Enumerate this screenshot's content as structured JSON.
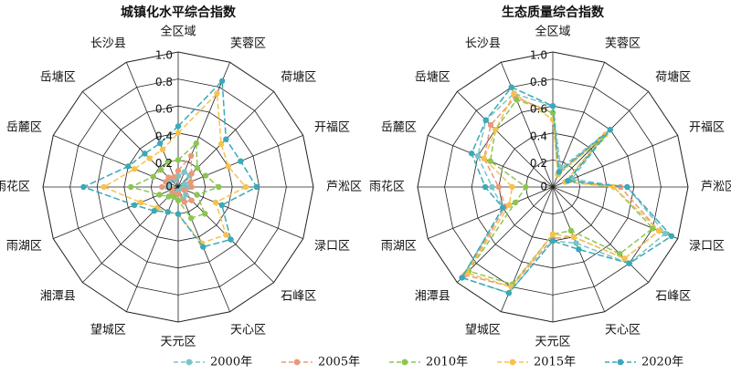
{
  "chart_data": [
    {
      "type": "radar",
      "title": "城镇化水平综合指数",
      "categories": [
        "全区域",
        "芙蓉区",
        "荷塘区",
        "开福区",
        "芦淞区",
        "渌口区",
        "石峰区",
        "天心区",
        "天元区",
        "望城区",
        "湘潭县",
        "雨湖区",
        "雨花区",
        "岳麓区",
        "岳塘区",
        "长沙县"
      ],
      "rlim": [
        0,
        1.0
      ],
      "ticks": [
        "0",
        "0.2",
        "0.4",
        "0.6",
        "0.8",
        "1.0"
      ],
      "series": [
        {
          "name": "2000年",
          "values": [
            0.08,
            0.12,
            0.12,
            0.05,
            0.08,
            0.03,
            0.08,
            0.1,
            0.03,
            0.05,
            0.06,
            0.06,
            0.08,
            0.07,
            0.09,
            0.06
          ]
        },
        {
          "name": "2005年",
          "values": [
            0.12,
            0.25,
            0.14,
            0.1,
            0.1,
            0.05,
            0.14,
            0.12,
            0.05,
            0.07,
            0.06,
            0.05,
            0.12,
            0.1,
            0.1,
            0.08
          ]
        },
        {
          "name": "2010年",
          "values": [
            0.2,
            0.35,
            0.2,
            0.22,
            0.3,
            0.15,
            0.28,
            0.25,
            0.1,
            0.08,
            0.1,
            0.15,
            0.35,
            0.2,
            0.18,
            0.2
          ]
        },
        {
          "name": "2015年",
          "values": [
            0.4,
            0.75,
            0.45,
            0.4,
            0.5,
            0.3,
            0.5,
            0.45,
            0.2,
            0.2,
            0.22,
            0.3,
            0.55,
            0.35,
            0.3,
            0.3
          ]
        },
        {
          "name": "2020年",
          "values": [
            0.45,
            0.85,
            0.5,
            0.5,
            0.58,
            0.35,
            0.55,
            0.48,
            0.2,
            0.2,
            0.25,
            0.35,
            0.7,
            0.4,
            0.35,
            0.35
          ]
        }
      ]
    },
    {
      "type": "radar",
      "title": "生态质量综合指数",
      "categories": [
        "全区域",
        "芙蓉区",
        "荷塘区",
        "开福区",
        "芦淞区",
        "渌口区",
        "石峰区",
        "天心区",
        "天元区",
        "望城区",
        "湘潭县",
        "雨湖区",
        "雨花区",
        "岳麓区",
        "岳塘区",
        "长沙县"
      ],
      "rlim": [
        0,
        1.0
      ],
      "ticks": [
        "0",
        "0.2",
        "0.4",
        "0.6",
        "0.8",
        "1.0"
      ],
      "series": [
        {
          "name": "2000年",
          "values": [
            0.6,
            0.15,
            0.6,
            0.15,
            0.55,
            0.9,
            0.8,
            0.45,
            0.4,
            0.85,
            0.95,
            0.4,
            0.45,
            0.6,
            0.7,
            0.75
          ]
        },
        {
          "name": "2005年",
          "values": [
            0.55,
            0.12,
            0.55,
            0.12,
            0.5,
            0.85,
            0.75,
            0.4,
            0.38,
            0.8,
            0.92,
            0.38,
            0.4,
            0.55,
            0.65,
            0.72
          ]
        },
        {
          "name": "2010年",
          "values": [
            0.55,
            0.1,
            0.5,
            0.1,
            0.45,
            0.8,
            0.7,
            0.35,
            0.35,
            0.78,
            0.88,
            0.3,
            0.2,
            0.5,
            0.6,
            0.7
          ]
        },
        {
          "name": "2015年",
          "values": [
            0.5,
            0.1,
            0.55,
            0.1,
            0.45,
            0.85,
            0.75,
            0.4,
            0.35,
            0.8,
            0.9,
            0.35,
            0.3,
            0.55,
            0.6,
            0.75
          ]
        },
        {
          "name": "2020年",
          "values": [
            0.6,
            0.12,
            0.6,
            0.12,
            0.55,
            0.95,
            0.8,
            0.5,
            0.4,
            0.85,
            0.95,
            0.4,
            0.5,
            0.65,
            0.7,
            0.8
          ]
        }
      ]
    }
  ],
  "legend": [
    {
      "label": "2000年",
      "color": "#7ac4c7"
    },
    {
      "label": "2005年",
      "color": "#e8997a"
    },
    {
      "label": "2010年",
      "color": "#8cc652"
    },
    {
      "label": "2015年",
      "color": "#f5c24e"
    },
    {
      "label": "2020年",
      "color": "#3aa9b8"
    }
  ]
}
